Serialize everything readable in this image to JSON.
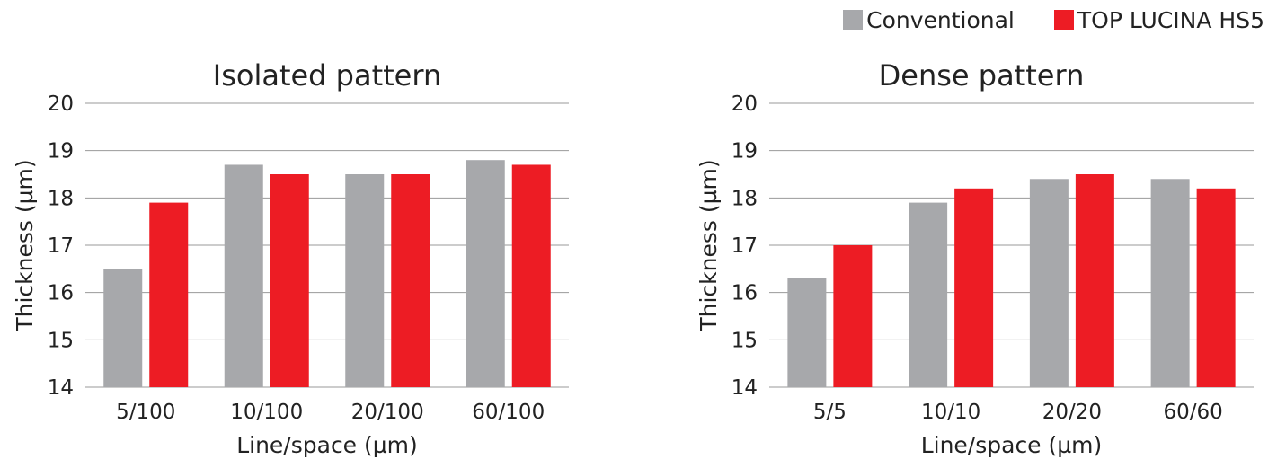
{
  "legend": {
    "items": [
      {
        "label": "Conventional",
        "color": "#a7a8ab"
      },
      {
        "label": "TOP LUCINA HS5",
        "color": "#ed1c24"
      }
    ]
  },
  "chart_data": [
    {
      "type": "bar",
      "title": "Isolated pattern",
      "xlabel": "Line/space  (µm)",
      "ylabel": "Thickness  (µm)",
      "categories": [
        "5/100",
        "10/100",
        "20/100",
        "60/100"
      ],
      "ylim": [
        14,
        20
      ],
      "yticks": [
        14,
        15,
        16,
        17,
        18,
        19,
        20
      ],
      "grid": true,
      "legend_position": "top-right",
      "series": [
        {
          "name": "Conventional",
          "color": "#a7a8ab",
          "values": [
            16.5,
            18.7,
            18.5,
            18.8
          ]
        },
        {
          "name": "TOP LUCINA HS5",
          "color": "#ed1c24",
          "values": [
            17.9,
            18.5,
            18.5,
            18.7
          ]
        }
      ]
    },
    {
      "type": "bar",
      "title": "Dense pattern",
      "xlabel": "Line/space  (µm)",
      "ylabel": "Thickness  (µm)",
      "categories": [
        "5/5",
        "10/10",
        "20/20",
        "60/60"
      ],
      "ylim": [
        14,
        20
      ],
      "yticks": [
        14,
        15,
        16,
        17,
        18,
        19,
        20
      ],
      "grid": true,
      "legend_position": "top-right",
      "series": [
        {
          "name": "Conventional",
          "color": "#a7a8ab",
          "values": [
            16.3,
            17.9,
            18.4,
            18.4
          ]
        },
        {
          "name": "TOP LUCINA HS5",
          "color": "#ed1c24",
          "values": [
            17.0,
            18.2,
            18.5,
            18.2
          ]
        }
      ]
    }
  ]
}
